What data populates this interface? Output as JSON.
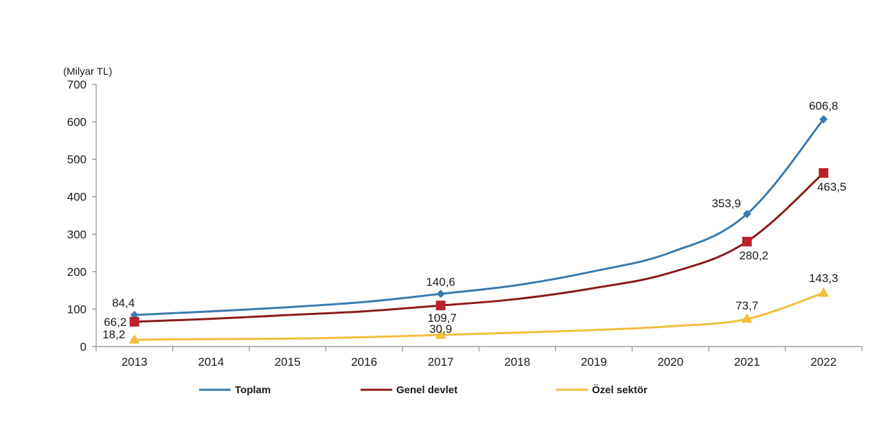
{
  "chart_data": {
    "type": "line",
    "title": "",
    "unit_label": "(Milyar TL)",
    "xlabel": "",
    "ylabel": "Milyar TL",
    "categories": [
      "2013",
      "2014",
      "2015",
      "2016",
      "2017",
      "2018",
      "2019",
      "2020",
      "2021",
      "2022"
    ],
    "ylim": [
      0,
      700
    ],
    "yticks": [
      0,
      100,
      200,
      300,
      400,
      500,
      600,
      700
    ],
    "grid": false,
    "legend_position": "bottom",
    "series": [
      {
        "name": "Toplam",
        "color": "#3A7AAE",
        "marker": "diamond",
        "values": [
          84.4,
          94,
          105,
          119,
          140.6,
          164,
          201,
          251,
          353.9,
          606.8
        ],
        "labels": [
          {
            "index": 0,
            "text": "84,4"
          },
          {
            "index": 4,
            "text": "140,6"
          },
          {
            "index": 8,
            "text": "353,9"
          },
          {
            "index": 9,
            "text": "606,8"
          }
        ]
      },
      {
        "name": "Genel devlet",
        "color": "#8B1A1A",
        "marker": "square",
        "marker_color": "#B8222A",
        "values": [
          66.2,
          74,
          84,
          94,
          109.7,
          127,
          156,
          197,
          280.2,
          463.5
        ],
        "labels": [
          {
            "index": 0,
            "text": "66,2"
          },
          {
            "index": 4,
            "text": "109,7"
          },
          {
            "index": 8,
            "text": "280,2"
          },
          {
            "index": 9,
            "text": "463,5"
          }
        ]
      },
      {
        "name": "Özel sektör",
        "color": "#F2BE3C",
        "marker": "triangle",
        "values": [
          18.2,
          20,
          21,
          25,
          30.9,
          37,
          44,
          54,
          73.7,
          143.3
        ],
        "labels": [
          {
            "index": 0,
            "text": "18,2"
          },
          {
            "index": 4,
            "text": "30,9"
          },
          {
            "index": 8,
            "text": "73,7"
          },
          {
            "index": 9,
            "text": "143,3"
          }
        ]
      }
    ]
  }
}
